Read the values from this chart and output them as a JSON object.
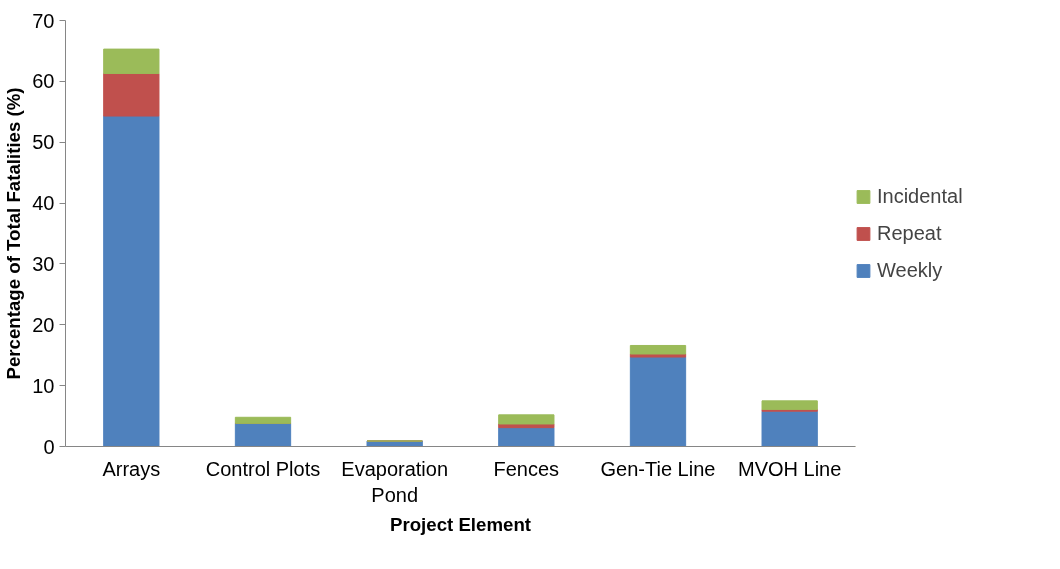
{
  "chart_data": {
    "type": "bar",
    "stacked": true,
    "xlabel": "Project Element",
    "ylabel": "Percentage of Total Fatalities (%)",
    "categories": [
      "Arrays",
      "Control Plots",
      "Evaporation Pond",
      "Fences",
      "Gen-Tie Line",
      "MVOH Line"
    ],
    "series": [
      {
        "name": "Weekly",
        "color": "#4f81bd",
        "values": [
          54.3,
          3.8,
          0.9,
          3.1,
          14.7,
          5.8
        ]
      },
      {
        "name": "Repeat",
        "color": "#c0504d",
        "values": [
          7.0,
          0,
          0,
          0.6,
          0.5,
          0.3
        ]
      },
      {
        "name": "Incidental",
        "color": "#9bbb59",
        "values": [
          4.0,
          1.0,
          0,
          1.5,
          1.4,
          1.4
        ]
      }
    ],
    "ylim": [
      0,
      70
    ],
    "yticks": [
      0,
      10,
      20,
      30,
      40,
      50,
      60,
      70
    ],
    "grid": false,
    "legend": "right"
  }
}
